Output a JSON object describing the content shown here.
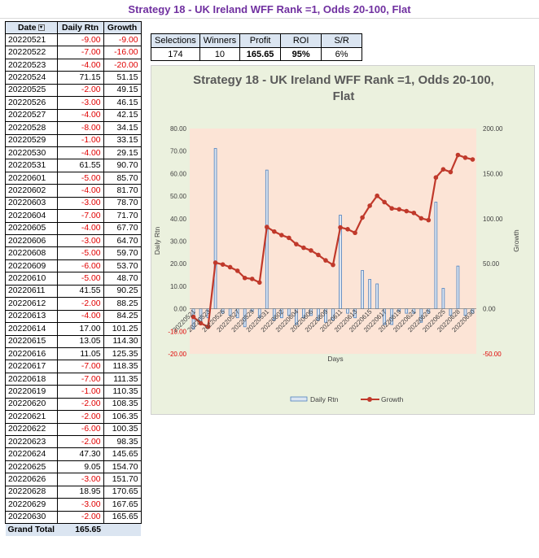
{
  "page_title": "Strategy 18 - UK Ireland WFF Rank =1, Odds 20-100, Flat",
  "table": {
    "headers": [
      "Date",
      "Daily Rtn",
      "Growth"
    ],
    "filter_icon": "filter-sort-icon",
    "rows": [
      [
        "20220521",
        "-9.00",
        "-9.00"
      ],
      [
        "20220522",
        "-7.00",
        "-16.00"
      ],
      [
        "20220523",
        "-4.00",
        "-20.00"
      ],
      [
        "20220524",
        "71.15",
        "51.15"
      ],
      [
        "20220525",
        "-2.00",
        "49.15"
      ],
      [
        "20220526",
        "-3.00",
        "46.15"
      ],
      [
        "20220527",
        "-4.00",
        "42.15"
      ],
      [
        "20220528",
        "-8.00",
        "34.15"
      ],
      [
        "20220529",
        "-1.00",
        "33.15"
      ],
      [
        "20220530",
        "-4.00",
        "29.15"
      ],
      [
        "20220531",
        "61.55",
        "90.70"
      ],
      [
        "20220601",
        "-5.00",
        "85.70"
      ],
      [
        "20220602",
        "-4.00",
        "81.70"
      ],
      [
        "20220603",
        "-3.00",
        "78.70"
      ],
      [
        "20220604",
        "-7.00",
        "71.70"
      ],
      [
        "20220605",
        "-4.00",
        "67.70"
      ],
      [
        "20220606",
        "-3.00",
        "64.70"
      ],
      [
        "20220608",
        "-5.00",
        "59.70"
      ],
      [
        "20220609",
        "-6.00",
        "53.70"
      ],
      [
        "20220610",
        "-5.00",
        "48.70"
      ],
      [
        "20220611",
        "41.55",
        "90.25"
      ],
      [
        "20220612",
        "-2.00",
        "88.25"
      ],
      [
        "20220613",
        "-4.00",
        "84.25"
      ],
      [
        "20220614",
        "17.00",
        "101.25"
      ],
      [
        "20220615",
        "13.05",
        "114.30"
      ],
      [
        "20220616",
        "11.05",
        "125.35"
      ],
      [
        "20220617",
        "-7.00",
        "118.35"
      ],
      [
        "20220618",
        "-7.00",
        "111.35"
      ],
      [
        "20220619",
        "-1.00",
        "110.35"
      ],
      [
        "20220620",
        "-2.00",
        "108.35"
      ],
      [
        "20220621",
        "-2.00",
        "106.35"
      ],
      [
        "20220622",
        "-6.00",
        "100.35"
      ],
      [
        "20220623",
        "-2.00",
        "98.35"
      ],
      [
        "20220624",
        "47.30",
        "145.65"
      ],
      [
        "20220625",
        "9.05",
        "154.70"
      ],
      [
        "20220626",
        "-3.00",
        "151.70"
      ],
      [
        "20220628",
        "18.95",
        "170.65"
      ],
      [
        "20220629",
        "-3.00",
        "167.65"
      ],
      [
        "20220630",
        "-2.00",
        "165.65"
      ]
    ],
    "total_label": "Grand Total",
    "total_value": "165.65"
  },
  "summary": {
    "headers": [
      "Selections",
      "Winners",
      "Profit",
      "ROI",
      "S/R"
    ],
    "values": [
      "174",
      "10",
      "165.65",
      "95%",
      "6%"
    ]
  },
  "colors": {
    "title": "#7030a0",
    "negative": "#e00000",
    "header_fill": "#dbe5f1",
    "chart_outer": "#ebf1de",
    "plot_area": "#fce4d6",
    "bar_fill": "#4f81bd",
    "line": "#c0392b"
  },
  "chart_data": {
    "type": "bar",
    "title": "Strategy 18 - UK Ireland WFF Rank =1, Odds 20-100, Flat",
    "xlabel": "Days",
    "ylabel": "Daily Rtn",
    "y2label": "Growth",
    "ylim": [
      -20,
      80
    ],
    "y_ticks": [
      "80.00",
      "70.00",
      "60.00",
      "50.00",
      "40.00",
      "30.00",
      "20.00",
      "10.00",
      "0.00",
      "-10.00",
      "-20.00"
    ],
    "y2lim": [
      -50,
      200
    ],
    "y2_ticks": [
      "200.00",
      "150.00",
      "100.00",
      "50.00",
      "0.00",
      "-50.00"
    ],
    "categories": [
      "20220521",
      "20220522",
      "20220523",
      "20220524",
      "20220525",
      "20220526",
      "20220527",
      "20220528",
      "20220529",
      "20220530",
      "20220531",
      "20220601",
      "20220602",
      "20220603",
      "20220604",
      "20220605",
      "20220606",
      "20220608",
      "20220609",
      "20220610",
      "20220611",
      "20220612",
      "20220613",
      "20220614",
      "20220615",
      "20220616",
      "20220617",
      "20220618",
      "20220619",
      "20220620",
      "20220621",
      "20220622",
      "20220623",
      "20220624",
      "20220625",
      "20220626",
      "20220628",
      "20220629",
      "20220630"
    ],
    "tick_labels": [
      "20220521",
      "20220523",
      "20220525",
      "20220527",
      "20220529",
      "20220531",
      "20220602",
      "20220604",
      "20220606",
      "20220609",
      "20220611",
      "20220613",
      "20220615",
      "20220617",
      "20220619",
      "20220621",
      "20220623",
      "20220625",
      "20220628",
      "20220630"
    ],
    "series": [
      {
        "name": "Daily Rtn",
        "type": "bar",
        "axis": "left",
        "values": [
          -9,
          -7,
          -4,
          71.15,
          -2,
          -3,
          -4,
          -8,
          -1,
          -4,
          61.55,
          -5,
          -4,
          -3,
          -7,
          -4,
          -3,
          -5,
          -6,
          -5,
          41.55,
          -2,
          -4,
          17,
          13.05,
          11.05,
          -7,
          -7,
          -1,
          -2,
          -2,
          -6,
          -2,
          47.3,
          9.05,
          -3,
          18.95,
          -3,
          -2
        ]
      },
      {
        "name": "Growth",
        "type": "line",
        "axis": "right",
        "values": [
          -9,
          -16,
          -20,
          51.15,
          49.15,
          46.15,
          42.15,
          34.15,
          33.15,
          29.15,
          90.7,
          85.7,
          81.7,
          78.7,
          71.7,
          67.7,
          64.7,
          59.7,
          53.7,
          48.7,
          90.25,
          88.25,
          84.25,
          101.25,
          114.3,
          125.35,
          118.35,
          111.35,
          110.35,
          108.35,
          106.35,
          100.35,
          98.35,
          145.65,
          154.7,
          151.7,
          170.65,
          167.65,
          165.65
        ]
      }
    ],
    "legend_position": "bottom",
    "grid": false
  }
}
